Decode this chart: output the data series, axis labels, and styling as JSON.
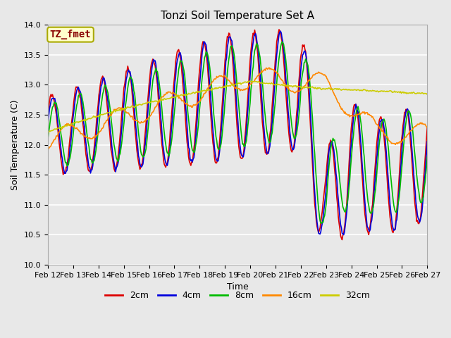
{
  "title": "Tonzi Soil Temperature Set A",
  "xlabel": "Time",
  "ylabel": "Soil Temperature (C)",
  "ylim": [
    10.0,
    14.0
  ],
  "yticks": [
    10.0,
    10.5,
    11.0,
    11.5,
    12.0,
    12.5,
    13.0,
    13.5,
    14.0
  ],
  "xtick_labels": [
    "Feb 12",
    "Feb 13",
    "Feb 14",
    "Feb 15",
    "Feb 16",
    "Feb 17",
    "Feb 18",
    "Feb 19",
    "Feb 20",
    "Feb 21",
    "Feb 22",
    "Feb 23",
    "Feb 24",
    "Feb 25",
    "Feb 26",
    "Feb 27"
  ],
  "legend_labels": [
    "2cm",
    "4cm",
    "8cm",
    "16cm",
    "32cm"
  ],
  "legend_colors": [
    "#dd0000",
    "#0000dd",
    "#00bb00",
    "#ff8800",
    "#cccc00"
  ],
  "line_widths": [
    1.2,
    1.2,
    1.2,
    1.2,
    1.2
  ],
  "annotation_text": "TZ_fmet",
  "annotation_color": "#880000",
  "annotation_bg": "#ffffcc",
  "annotation_edge": "#aaaa00",
  "bg_color": "#e8e8e8",
  "title_fontsize": 11,
  "tick_fontsize": 8,
  "label_fontsize": 9
}
